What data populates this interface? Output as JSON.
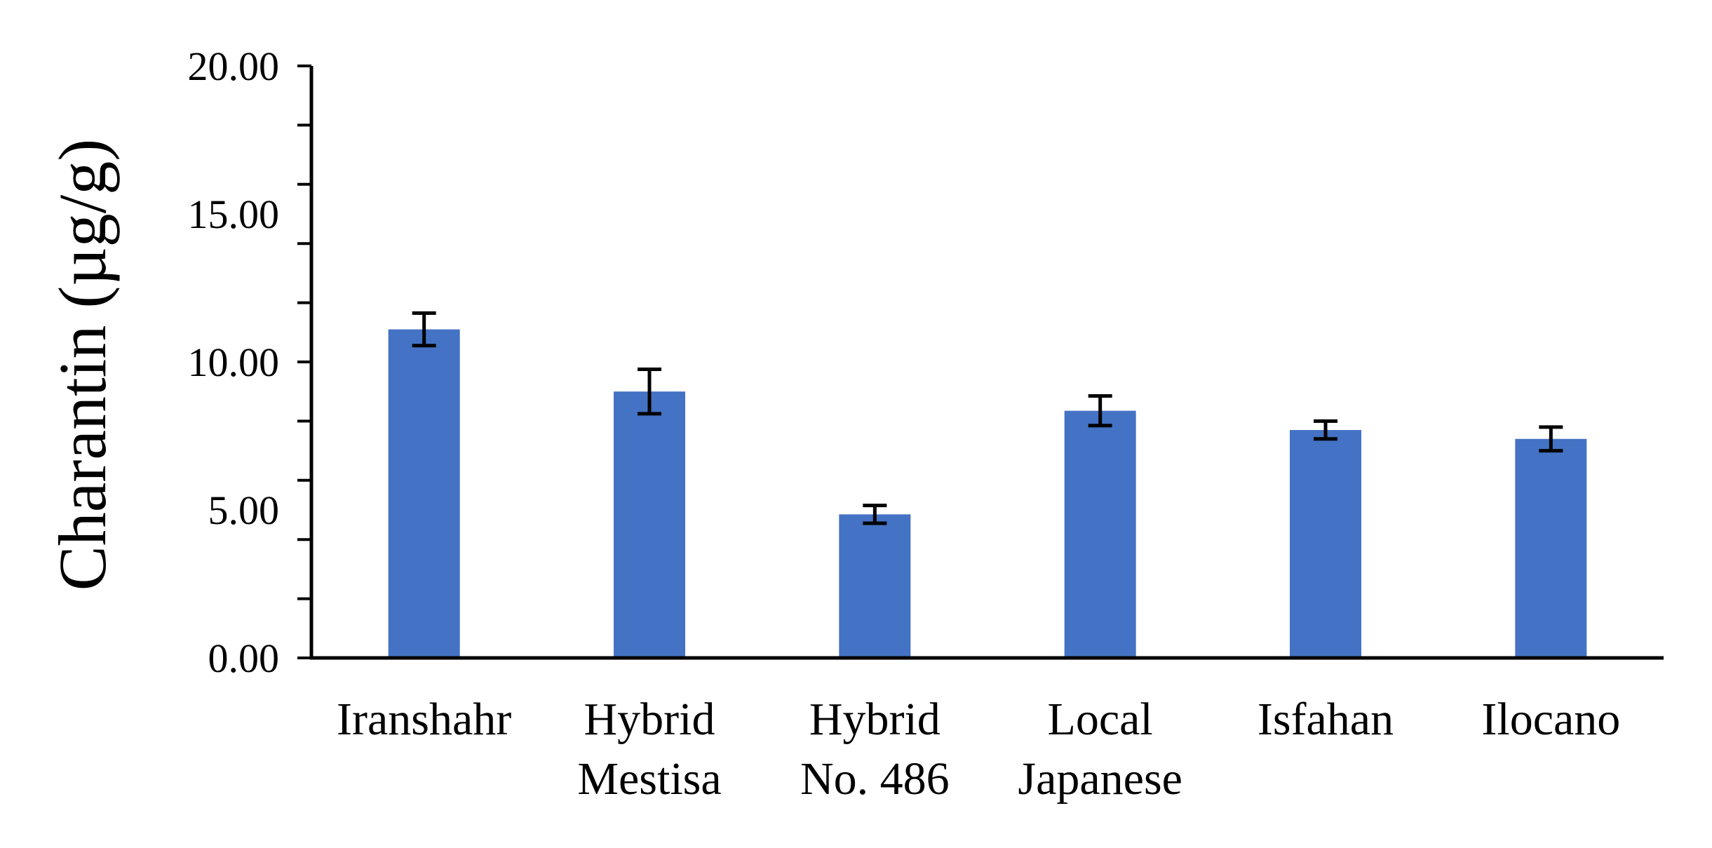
{
  "chart_data": {
    "type": "bar",
    "categories": [
      [
        "Iranshahr"
      ],
      [
        "Hybrid",
        "Mestisa"
      ],
      [
        "Hybrid",
        "No. 486"
      ],
      [
        "Local",
        "Japanese"
      ],
      [
        "Isfahan"
      ],
      [
        "Ilocano"
      ]
    ],
    "values": [
      11.1,
      9.0,
      4.85,
      8.35,
      7.7,
      7.4
    ],
    "errors": [
      0.55,
      0.75,
      0.3,
      0.5,
      0.3,
      0.4
    ],
    "title": "",
    "xlabel": "",
    "ylabel": "Charantin (µg/g)",
    "ylim": [
      0,
      20
    ],
    "major_ticks": [
      0,
      5,
      10,
      15,
      20
    ],
    "tick_labels": [
      "0.00",
      "5.00",
      "10.00",
      "15.00",
      "20.00"
    ],
    "minor_tick_step": 2,
    "grid": false,
    "legend": "none",
    "bar_color": "#4472C4",
    "error_bar_color": "#000000"
  }
}
